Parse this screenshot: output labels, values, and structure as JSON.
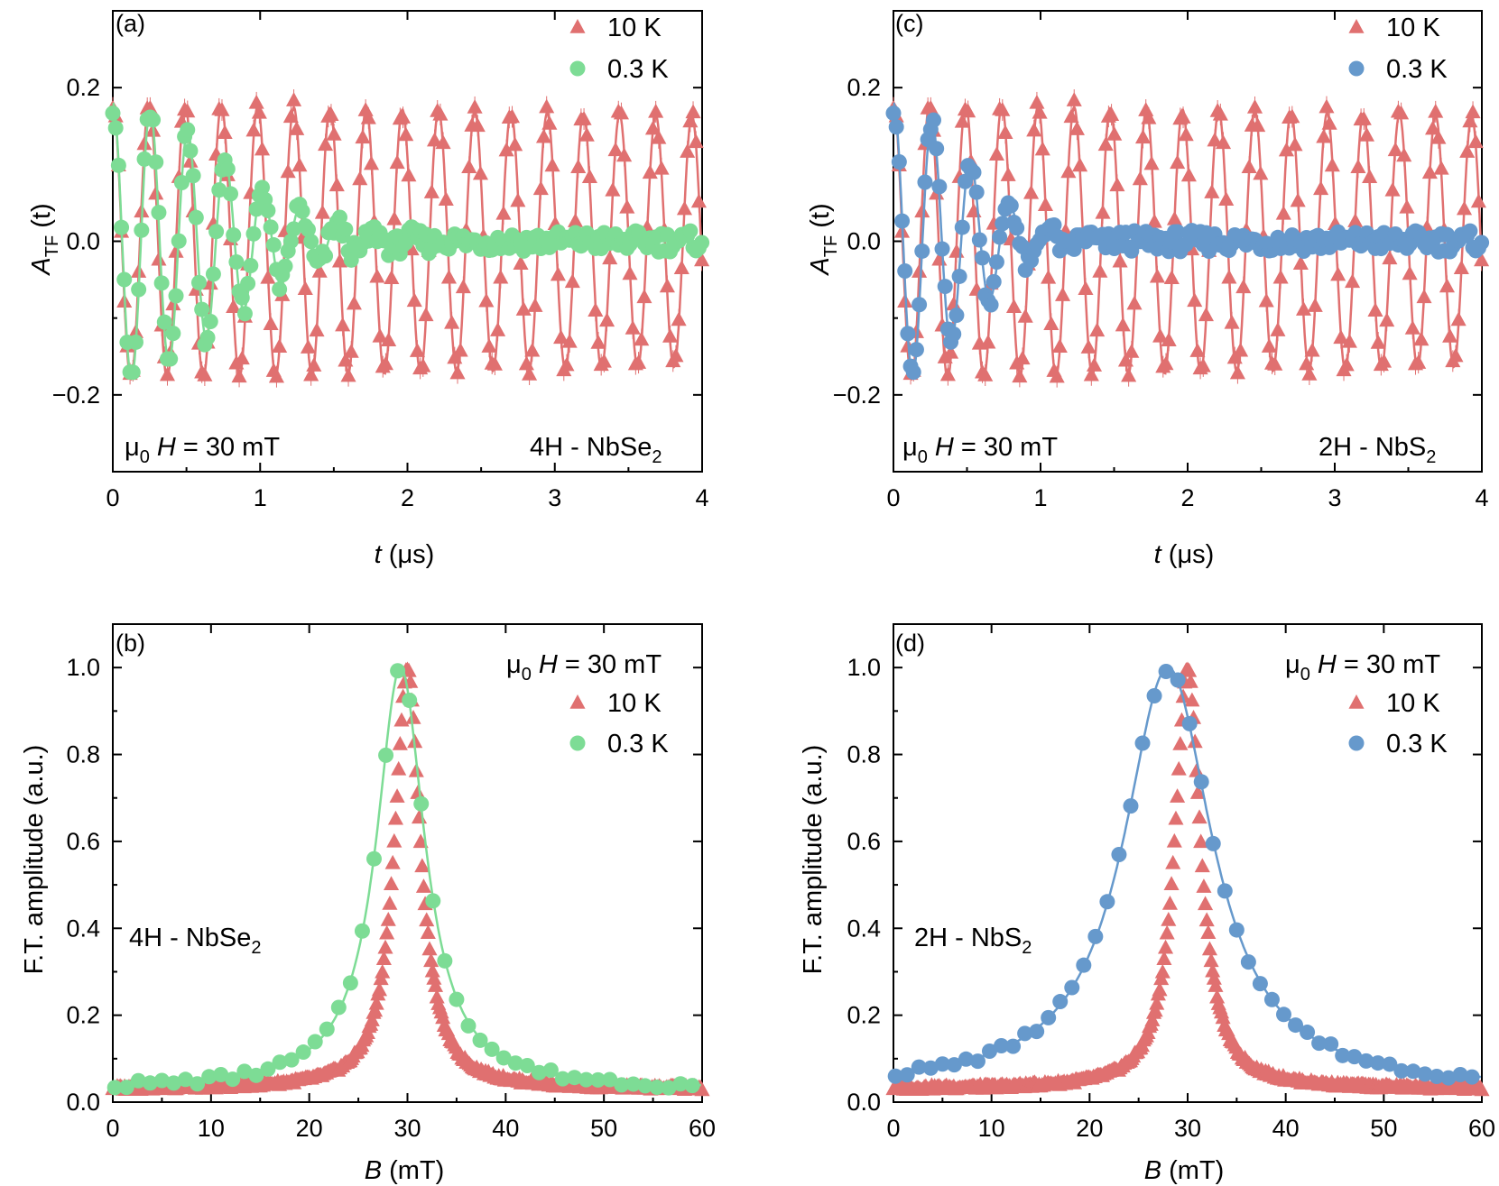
{
  "colors": {
    "red": "#e07070",
    "green": "#7ddc95",
    "blue": "#6699cc",
    "axis": "#000000"
  },
  "chart_data": [
    {
      "id": "a",
      "type": "scatter",
      "panel_label": "(a)",
      "xlabel": {
        "var": "t",
        "unit": " (μs)"
      },
      "ylabel": {
        "main": "A",
        "sub": "TF",
        "rest": " (t)"
      },
      "xlim": [
        0,
        4
      ],
      "ylim": [
        -0.3,
        0.3
      ],
      "xticks": [
        0,
        1,
        2,
        3,
        4
      ],
      "xtick_labels": [
        "0",
        "1",
        "2",
        "3",
        "4"
      ],
      "yticks": [
        -0.2,
        0,
        0.2
      ],
      "ytick_labels": [
        "−0.2",
        "0.0",
        "0.2"
      ],
      "series": [
        {
          "name": "10 K",
          "marker": "triangle",
          "color": "#e07070",
          "freq_MHz": 4.07,
          "amp0": 0.18,
          "tau_us": 40,
          "phase": 0
        },
        {
          "name": "0.3 K",
          "marker": "circle",
          "color": "#7ddc95",
          "freq_MHz": 3.93,
          "amp0": 0.18,
          "sigma_us": 0.75,
          "phase": 0
        }
      ],
      "annotations": {
        "field": {
          "mu": "μ",
          "sub": "0",
          "var": "H",
          "rest": " = 30 mT"
        },
        "sample": {
          "main": "4H - NbSe",
          "sub": "2"
        }
      }
    },
    {
      "id": "c",
      "type": "scatter",
      "panel_label": "(c)",
      "xlabel": {
        "var": "t",
        "unit": " (μs)"
      },
      "ylabel": {
        "main": "A",
        "sub": "TF",
        "rest": " (t)"
      },
      "xlim": [
        0,
        4
      ],
      "ylim": [
        -0.3,
        0.3
      ],
      "xticks": [
        0,
        1,
        2,
        3,
        4
      ],
      "xtick_labels": [
        "0",
        "1",
        "2",
        "3",
        "4"
      ],
      "yticks": [
        -0.2,
        0,
        0.2
      ],
      "ytick_labels": [
        "−0.2",
        "0.0",
        "0.2"
      ],
      "series": [
        {
          "name": "10 K",
          "marker": "triangle",
          "color": "#e07070",
          "freq_MHz": 4.07,
          "amp0": 0.18,
          "tau_us": 40,
          "phase": 0
        },
        {
          "name": "0.3 K",
          "marker": "circle",
          "color": "#6699cc",
          "freq_MHz": 3.8,
          "amp0": 0.18,
          "sigma_us": 0.5,
          "phase": 0
        }
      ],
      "annotations": {
        "field": {
          "mu": "μ",
          "sub": "0",
          "var": "H",
          "rest": " = 30 mT"
        },
        "sample": {
          "main": "2H - NbS",
          "sub": "2"
        }
      }
    },
    {
      "id": "b",
      "type": "scatter",
      "panel_label": "(b)",
      "xlabel": {
        "var": "B",
        "unit": " (mT)"
      },
      "ylabel": {
        "text": "F.T. amplitude (a.u.)"
      },
      "xlim": [
        0,
        60
      ],
      "ylim": [
        0,
        1.1
      ],
      "xticks": [
        0,
        10,
        20,
        30,
        40,
        50,
        60
      ],
      "xtick_labels": [
        "0",
        "10",
        "20",
        "30",
        "40",
        "50",
        "60"
      ],
      "yticks": [
        0,
        0.2,
        0.4,
        0.6,
        0.8,
        1.0
      ],
      "ytick_labels": [
        "0.0",
        "0.2",
        "0.4",
        "0.6",
        "0.8",
        "1.0"
      ],
      "series": [
        {
          "name": "10 K",
          "marker": "triangle",
          "color": "#e07070",
          "center_mT": 30.0,
          "gamma_mT": 1.6,
          "floor": 0.03
        },
        {
          "name": "0.3 K",
          "marker": "circle",
          "color": "#7ddc95",
          "center_mT": 29.3,
          "gamma_mT": 3.0,
          "floor": 0.03
        }
      ],
      "legend_title": {
        "mu": "μ",
        "sub": "0",
        "var": "H",
        "rest": " = 30 mT"
      },
      "annotations": {
        "sample": {
          "main": "4H - NbSe",
          "sub": "2"
        }
      }
    },
    {
      "id": "d",
      "type": "scatter",
      "panel_label": "(d)",
      "xlabel": {
        "var": "B",
        "unit": " (mT)"
      },
      "ylabel": {
        "text": "F.T. amplitude (a.u.)"
      },
      "xlim": [
        0,
        60
      ],
      "ylim": [
        0,
        1.1
      ],
      "xticks": [
        0,
        10,
        20,
        30,
        40,
        50,
        60
      ],
      "xtick_labels": [
        "0",
        "10",
        "20",
        "30",
        "40",
        "50",
        "60"
      ],
      "yticks": [
        0,
        0.2,
        0.4,
        0.6,
        0.8,
        1.0
      ],
      "ytick_labels": [
        "0.0",
        "0.2",
        "0.4",
        "0.6",
        "0.8",
        "1.0"
      ],
      "series": [
        {
          "name": "10 K",
          "marker": "triangle",
          "color": "#e07070",
          "center_mT": 30.0,
          "gamma_mT": 1.6,
          "floor": 0.03
        },
        {
          "name": "0.3 K",
          "marker": "circle",
          "color": "#6699cc",
          "center_mT": 28.0,
          "gamma_mT": 5.5,
          "floor": 0.03
        }
      ],
      "legend_title": {
        "mu": "μ",
        "sub": "0",
        "var": "H",
        "rest": " = 30 mT"
      },
      "annotations": {
        "sample": {
          "main": "2H - NbS",
          "sub": "2"
        }
      }
    }
  ]
}
